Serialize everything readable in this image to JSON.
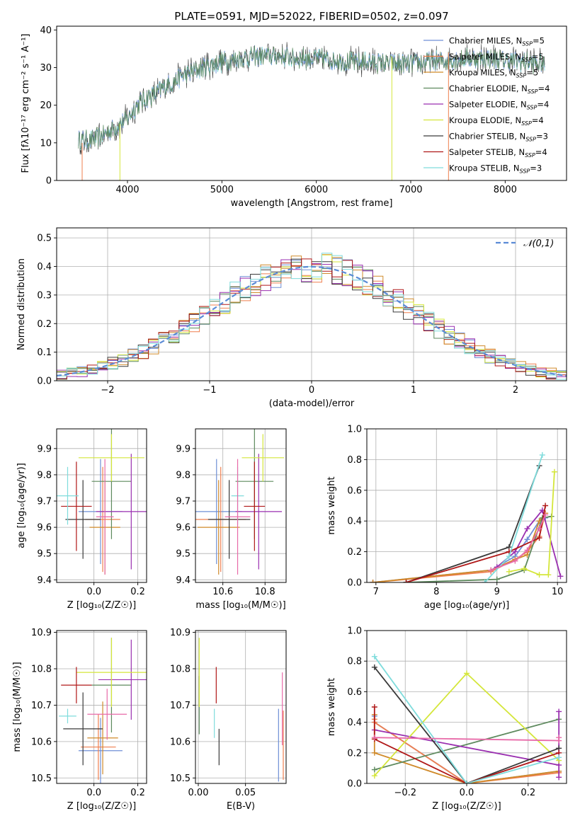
{
  "title": "PLATE=0591, MJD=52022, FIBERID=0502, z=0.097",
  "models": [
    {
      "name": "Chabrier MILES",
      "nssp": "5",
      "color": "#6f8fd6"
    },
    {
      "name": "Salpeter MILES",
      "nssp": "5",
      "color": "#ef7f4f"
    },
    {
      "name": "Kroupa MILES",
      "nssp": "5",
      "color": "#d08a2a"
    },
    {
      "name": "Chabrier ELODIE",
      "nssp": "4",
      "color": "#5e8a5e"
    },
    {
      "name": "Salpeter ELODIE",
      "nssp": "4",
      "color": "#9a2fb0"
    },
    {
      "name": "Kroupa ELODIE",
      "nssp": "4",
      "color": "#d4e63a"
    },
    {
      "name": "Chabrier STELIB",
      "nssp": "3",
      "color": "#3a3a3a"
    },
    {
      "name": "Salpeter STELIB",
      "nssp": "4",
      "color": "#b01818"
    },
    {
      "name": "Kroupa STELIB",
      "nssp": "3",
      "color": "#7fdcdc"
    }
  ],
  "extra_colors": {
    "pink": "#e86aa8",
    "gauss": "#5b8bd6",
    "grid": "#b0b0b0"
  },
  "chart_data": [
    {
      "id": "spectrum",
      "type": "line",
      "title": "PLATE=0591, MJD=52022, FIBERID=0502, z=0.097",
      "xlabel": "wavelength [Angstrom, rest frame]",
      "ylabel": "Flux [fλ10⁻¹⁷ erg cm⁻² s⁻¹ A⁻¹]",
      "xlim": [
        3250,
        8650
      ],
      "ylim": [
        0,
        41
      ],
      "xticks": [
        4000,
        5000,
        6000,
        7000,
        8000
      ],
      "yticks": [
        0,
        10,
        20,
        30,
        40
      ],
      "grid": false,
      "legend": "top-right",
      "continuum": {
        "x": [
          3480,
          3600,
          3700,
          3800,
          3900,
          4000,
          4100,
          4200,
          4300,
          4400,
          4600,
          4800,
          5000,
          5200,
          5400,
          5600,
          5800,
          6000,
          6200,
          6400,
          6600,
          6800,
          7000,
          7200,
          7400,
          7600,
          7800,
          8000,
          8200,
          8400
        ],
        "y": [
          11,
          10.5,
          11.5,
          13,
          14.5,
          16.5,
          20,
          22,
          23,
          25,
          28,
          30,
          31.5,
          32.5,
          33,
          33,
          32.5,
          32.5,
          32,
          31.5,
          31.5,
          31,
          31,
          31.5,
          32,
          32.5,
          32.5,
          32,
          31.5,
          31
        ]
      }
    },
    {
      "id": "residuals",
      "type": "histogram",
      "xlabel": "(data-model)/error",
      "ylabel": "Normed distribution",
      "xlim": [
        -2.5,
        2.5
      ],
      "ylim": [
        0,
        0.535
      ],
      "xticks": [
        -2,
        -1,
        0,
        1,
        2
      ],
      "yticks": [
        0.0,
        0.1,
        0.2,
        0.3,
        0.4,
        0.5
      ],
      "grid": true,
      "legend": "top-right",
      "gauss_label": "𝒩(0,1)",
      "bin_width": 0.1
    },
    {
      "id": "age_vs_Z",
      "type": "errorbar",
      "xlabel": "Z [log₁₀(Z/Z☉)]",
      "ylabel": "age  [log₁₀(age/yr)]",
      "xlim": [
        -0.17,
        0.24
      ],
      "ylim": [
        9.39,
        9.975
      ],
      "xticks": [
        0.0,
        0.2
      ],
      "yticks": [
        9.4,
        9.5,
        9.6,
        9.7,
        9.8,
        9.9
      ],
      "points": [
        {
          "x": 0.03,
          "xerr": 0.1,
          "y": 9.66,
          "yerr": 0.2,
          "model": 0
        },
        {
          "x": 0.04,
          "xerr": 0.08,
          "y": 9.63,
          "yerr": 0.2,
          "model": 1
        },
        {
          "x": 0.05,
          "xerr": 0.07,
          "y": 9.6,
          "yerr": 0.18,
          "model": 2
        },
        {
          "x": 0.08,
          "xerr": 0.09,
          "y": 9.775,
          "yerr": 0.22,
          "model": 3
        },
        {
          "x": 0.17,
          "xerr": 0.16,
          "y": 9.66,
          "yerr": 0.22,
          "model": 4
        },
        {
          "x": 0.08,
          "xerr": 0.15,
          "y": 9.865,
          "yerr": 0.09,
          "model": 5
        },
        {
          "x": -0.05,
          "xerr": 0.08,
          "y": 9.63,
          "yerr": 0.15,
          "model": 6
        },
        {
          "x": -0.08,
          "xerr": 0.07,
          "y": 9.68,
          "yerr": 0.17,
          "model": 7
        },
        {
          "x": -0.12,
          "xerr": 0.05,
          "y": 9.72,
          "yerr": 0.11,
          "model": 8
        },
        {
          "x": 0.05,
          "xerr": 0.04,
          "y": 9.64,
          "yerr": 0.22,
          "color": "pink"
        }
      ]
    },
    {
      "id": "age_vs_mass",
      "type": "errorbar",
      "xlabel": "mass [log₁₀(M/M☉)]",
      "ylabel": "",
      "xlim": [
        10.47,
        10.9
      ],
      "ylim": [
        9.39,
        9.975
      ],
      "xticks": [
        10.6,
        10.8
      ],
      "yticks": [
        9.4,
        9.5,
        9.6,
        9.7,
        9.8,
        9.9
      ],
      "points": [
        {
          "x": 10.57,
          "xerr": 0.12,
          "y": 9.66,
          "yerr": 0.2,
          "model": 0
        },
        {
          "x": 10.59,
          "xerr": 0.12,
          "y": 9.63,
          "yerr": 0.2,
          "model": 1
        },
        {
          "x": 10.58,
          "xerr": 0.1,
          "y": 9.6,
          "yerr": 0.18,
          "model": 2
        },
        {
          "x": 10.75,
          "xerr": 0.09,
          "y": 9.775,
          "yerr": 0.22,
          "model": 3
        },
        {
          "x": 10.77,
          "xerr": 0.11,
          "y": 9.66,
          "yerr": 0.22,
          "model": 4
        },
        {
          "x": 10.79,
          "xerr": 0.1,
          "y": 9.865,
          "yerr": 0.09,
          "model": 5
        },
        {
          "x": 10.63,
          "xerr": 0.1,
          "y": 9.63,
          "yerr": 0.15,
          "model": 6
        },
        {
          "x": 10.75,
          "xerr": 0.05,
          "y": 9.68,
          "yerr": 0.17,
          "model": 7
        },
        {
          "x": 10.67,
          "xerr": 0.03,
          "y": 9.72,
          "yerr": 0.11,
          "model": 8
        },
        {
          "x": 10.67,
          "xerr": 0.06,
          "y": 9.64,
          "yerr": 0.22,
          "color": "pink"
        }
      ]
    },
    {
      "id": "weight_vs_age",
      "type": "line",
      "xlabel": "age  [log₁₀(age/yr)]",
      "ylabel": "mass weight",
      "xlim": [
        6.85,
        10.15
      ],
      "ylim": [
        0,
        1.0
      ],
      "xticks": [
        7,
        8,
        9,
        10
      ],
      "yticks": [
        0.0,
        0.2,
        0.4,
        0.6,
        0.8,
        1.0
      ],
      "grid": true,
      "series": [
        {
          "model": 0,
          "x": [
            6.95,
            8.9,
            9.3,
            9.5,
            9.7,
            9.8
          ],
          "y": [
            0,
            0.08,
            0.17,
            0.28,
            0.4,
            0.42
          ]
        },
        {
          "model": 1,
          "x": [
            6.95,
            8.9,
            9.3,
            9.5,
            9.7,
            9.8
          ],
          "y": [
            0,
            0.07,
            0.15,
            0.2,
            0.3,
            0.45
          ]
        },
        {
          "model": 2,
          "x": [
            6.95,
            8.9,
            9.3,
            9.5,
            9.7,
            9.8
          ],
          "y": [
            0,
            0.08,
            0.15,
            0.18,
            0.4,
            0.45
          ]
        },
        {
          "model": 3,
          "x": [
            7.5,
            9.0,
            9.45,
            9.75,
            9.9
          ],
          "y": [
            0,
            0.02,
            0.08,
            0.42,
            0.43
          ]
        },
        {
          "model": 4,
          "x": [
            9.0,
            9.3,
            9.5,
            9.75,
            10.05
          ],
          "y": [
            0.1,
            0.2,
            0.35,
            0.47,
            0.04
          ]
        },
        {
          "model": 5,
          "x": [
            9.2,
            9.45,
            9.7,
            9.85,
            9.95
          ],
          "y": [
            0.07,
            0.09,
            0.05,
            0.05,
            0.72
          ]
        },
        {
          "model": 6,
          "x": [
            7.5,
            9.2,
            9.7
          ],
          "y": [
            0,
            0.23,
            0.76
          ]
        },
        {
          "model": 7,
          "x": [
            7.5,
            9.2,
            9.7,
            9.8
          ],
          "y": [
            0,
            0.2,
            0.29,
            0.5
          ]
        },
        {
          "model": 8,
          "x": [
            8.8,
            9.2,
            9.75
          ],
          "y": [
            0,
            0.17,
            0.83
          ]
        },
        {
          "color": "pink",
          "x": [
            8.9,
            9.3,
            9.5,
            9.7,
            9.8
          ],
          "y": [
            0.08,
            0.14,
            0.21,
            0.35,
            0.44
          ]
        }
      ]
    },
    {
      "id": "mass_vs_Z",
      "type": "errorbar",
      "xlabel": "Z [log₁₀(Z/Z☉)]",
      "ylabel": "mass [log₁₀(M/M☉)]",
      "xlim": [
        -0.17,
        0.24
      ],
      "ylim": [
        10.485,
        10.905
      ],
      "xticks": [
        0.0,
        0.2
      ],
      "yticks": [
        10.5,
        10.6,
        10.7,
        10.8,
        10.9
      ],
      "points": [
        {
          "x": 0.03,
          "xerr": 0.1,
          "y": 10.575,
          "yerr": 0.09,
          "model": 0
        },
        {
          "x": 0.02,
          "xerr": 0.08,
          "y": 10.585,
          "yerr": 0.09,
          "model": 1
        },
        {
          "x": 0.04,
          "xerr": 0.07,
          "y": 10.61,
          "yerr": 0.1,
          "model": 2
        },
        {
          "x": 0.08,
          "xerr": 0.09,
          "y": 10.755,
          "yerr": 0.13,
          "model": 3
        },
        {
          "x": 0.17,
          "xerr": 0.15,
          "y": 10.77,
          "yerr": 0.11,
          "model": 4
        },
        {
          "x": 0.08,
          "xerr": 0.16,
          "y": 10.79,
          "yerr": 0.095,
          "model": 5
        },
        {
          "x": -0.05,
          "xerr": 0.09,
          "y": 10.635,
          "yerr": 0.1,
          "model": 6
        },
        {
          "x": -0.08,
          "xerr": 0.07,
          "y": 10.755,
          "yerr": 0.05,
          "model": 7
        },
        {
          "x": -0.12,
          "xerr": 0.04,
          "y": 10.67,
          "yerr": 0.02,
          "model": 8
        },
        {
          "x": 0.06,
          "xerr": 0.09,
          "y": 10.675,
          "yerr": 0.07,
          "color": "pink"
        }
      ]
    },
    {
      "id": "mass_vs_ebv",
      "type": "errorbar",
      "xlabel": "E(B-V)",
      "ylabel": "",
      "xlim": [
        -0.003,
        0.093
      ],
      "ylim": [
        10.485,
        10.905
      ],
      "xticks": [
        0.0,
        0.05
      ],
      "yticks": [
        10.5,
        10.6,
        10.7,
        10.8,
        10.9
      ],
      "points": [
        {
          "x": 0.085,
          "xerr": 0,
          "y": 10.59,
          "yerr": 0.1,
          "model": 0
        },
        {
          "x": 0.09,
          "xerr": 0,
          "y": 10.59,
          "yerr": 0.095,
          "model": 1
        },
        {
          "x": 0.001,
          "xerr": 0,
          "y": 10.7,
          "yerr": 0.08,
          "model": 3
        },
        {
          "x": 0.001,
          "xerr": 0,
          "y": 10.79,
          "yerr": 0.095,
          "model": 5
        },
        {
          "x": 0.022,
          "xerr": 0,
          "y": 10.585,
          "yerr": 0.05,
          "model": 6
        },
        {
          "x": 0.019,
          "xerr": 0,
          "y": 10.755,
          "yerr": 0.05,
          "model": 7
        },
        {
          "x": 0.017,
          "xerr": 0,
          "y": 10.65,
          "yerr": 0.04,
          "model": 8
        },
        {
          "x": 0.089,
          "xerr": 0,
          "y": 10.69,
          "yerr": 0.1,
          "color": "pink"
        }
      ]
    },
    {
      "id": "weight_vs_Z",
      "type": "line",
      "xlabel": "Z [log₁₀(Z/Z☉)]",
      "ylabel": "mass weight",
      "xlim": [
        -0.325,
        0.325
      ],
      "ylim": [
        0,
        1.0
      ],
      "xticks": [
        -0.2,
        0.0,
        0.2
      ],
      "yticks": [
        0.0,
        0.2,
        0.4,
        0.6,
        0.8,
        1.0
      ],
      "grid": true,
      "series": [
        {
          "model": 0,
          "x": [
            -0.3,
            -0.3,
            0.0,
            0.3
          ],
          "y": [
            0.44,
            0.4,
            0.0,
            0.08
          ]
        },
        {
          "model": 1,
          "x": [
            -0.3,
            -0.3,
            0.0,
            0.3
          ],
          "y": [
            0.42,
            0.4,
            0.0,
            0.07
          ]
        },
        {
          "model": 2,
          "x": [
            -0.3,
            -0.3,
            0.0,
            0.3
          ],
          "y": [
            0.45,
            0.2,
            0.0,
            0.08
          ]
        },
        {
          "model": 3,
          "x": [
            -0.3,
            0.3
          ],
          "y": [
            0.09,
            0.42
          ]
        },
        {
          "model": 4,
          "x": [
            -0.3,
            0.3,
            0.3,
            0.3
          ],
          "y": [
            0.35,
            0.12,
            0.47,
            0.04
          ]
        },
        {
          "model": 5,
          "x": [
            -0.3,
            0.0,
            0.3
          ],
          "y": [
            0.05,
            0.72,
            0.15
          ]
        },
        {
          "model": 6,
          "x": [
            -0.3,
            0.0,
            0.3
          ],
          "y": [
            0.76,
            0.0,
            0.23
          ]
        },
        {
          "model": 7,
          "x": [
            -0.3,
            -0.3,
            0.0,
            0.3
          ],
          "y": [
            0.5,
            0.29,
            0.0,
            0.2
          ]
        },
        {
          "model": 8,
          "x": [
            -0.3,
            0.0,
            0.3
          ],
          "y": [
            0.83,
            0.0,
            0.17
          ]
        },
        {
          "color": "pink",
          "x": [
            -0.3,
            0.3,
            0.3
          ],
          "y": [
            0.3,
            0.28,
            0.3
          ]
        }
      ]
    }
  ]
}
